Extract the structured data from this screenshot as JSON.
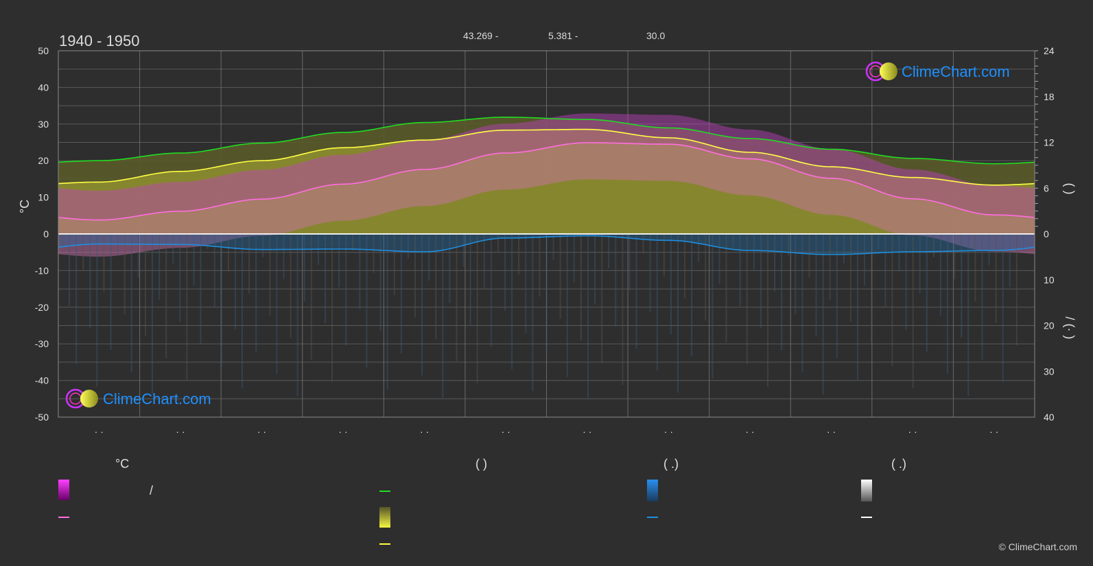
{
  "header": {
    "title": "1940 - 1950",
    "latitude": "43.269 -",
    "longitude": "5.381 -",
    "elevation": "30.0"
  },
  "brand": {
    "name": "ClimeChart.com",
    "copyright": "© ClimeChart.com"
  },
  "colors": {
    "background": "#2e2e2e",
    "max_temp_band": "#e800e8",
    "mean_temp": "#ff6ee0",
    "daylight": "#22dd22",
    "sunshine": "#e8e83a",
    "sunshine_line": "#ffff44",
    "precip": "#1e8fe0",
    "snow": "#cccccc",
    "brand": "#1e90ff"
  },
  "chart_data": {
    "type": "area",
    "title": "1940 - 1950",
    "x": [
      1,
      2,
      3,
      4,
      5,
      6,
      7,
      8,
      9,
      10,
      11,
      12
    ],
    "x_tick_labels": [
      "· ·",
      "· ·",
      "· ·",
      "· ·",
      "· ·",
      "· ·",
      "· ·",
      "· ·",
      "· ·",
      "· ·",
      "· ·",
      "· ·"
    ],
    "y_left": {
      "label": "°C",
      "ylim": [
        -50,
        50
      ],
      "ticks": [
        50,
        40,
        30,
        20,
        10,
        0,
        -10,
        -20,
        -30,
        -40,
        -50
      ]
    },
    "y_right_top": {
      "label": "(  )",
      "ylim": [
        0,
        24
      ],
      "ticks": [
        24,
        18,
        12,
        6,
        0
      ]
    },
    "y_right_bottom": {
      "label": "/  (· )",
      "ylim": [
        0,
        40
      ],
      "ticks": [
        0,
        10,
        20,
        30,
        40
      ]
    },
    "grid": true,
    "series": [
      {
        "key": "daylight",
        "axis": "right_top",
        "values": [
          9.6,
          10.6,
          11.9,
          13.3,
          14.6,
          15.3,
          15.0,
          13.9,
          12.5,
          11.1,
          9.9,
          9.2
        ]
      },
      {
        "key": "sunshine_mean",
        "axis": "right_top",
        "values": [
          6.8,
          8.2,
          9.6,
          11.3,
          12.3,
          13.6,
          13.7,
          12.6,
          10.7,
          8.8,
          7.4,
          6.4
        ]
      },
      {
        "key": "mean_temp",
        "axis": "left",
        "values": [
          3.8,
          6.2,
          9.5,
          13.6,
          17.6,
          22.1,
          24.9,
          24.5,
          20.5,
          15.2,
          9.6,
          5.2
        ]
      },
      {
        "key": "precip",
        "axis": "right_bottom",
        "values": [
          2.2,
          2.3,
          3.4,
          3.3,
          3.9,
          0.9,
          0.4,
          1.4,
          3.6,
          4.5,
          3.9,
          3.6
        ]
      }
    ]
  },
  "legend": {
    "columns": [
      {
        "header": "°C",
        "items": [
          {
            "key": "max_temp_band",
            "label": "/"
          },
          {
            "key": "mean_temp",
            "label": ""
          }
        ]
      },
      {
        "header": "(     )",
        "items": [
          {
            "key": "daylight",
            "label": ""
          },
          {
            "key": "sunshine",
            "label": ""
          },
          {
            "key": "sunshine_line",
            "label": ""
          }
        ]
      },
      {
        "header": "(  .)",
        "items": [
          {
            "key": "precip_band",
            "label": ""
          },
          {
            "key": "precip_line",
            "label": ""
          }
        ]
      },
      {
        "header": "(  .)",
        "items": [
          {
            "key": "snow_band",
            "label": ""
          },
          {
            "key": "snow_line",
            "label": ""
          }
        ]
      }
    ]
  }
}
